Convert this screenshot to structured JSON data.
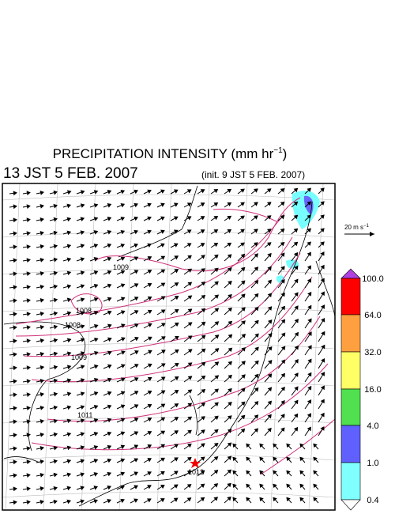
{
  "header": {
    "title": "PRECIPITATION INTENSITY (mm hr",
    "title_sup": "−1",
    "title_end": ")",
    "valid_time": "13 JST 5 FEB. 2007",
    "init_time": "(init. 9 JST 5 FEB. 2007)"
  },
  "vector_legend": {
    "label": "20 m s",
    "label_sup": "−1"
  },
  "colorbar": {
    "labels": [
      "100.0",
      "64.0",
      "32.0",
      "16.0",
      "4.0",
      "1.0",
      "0.4"
    ]
  },
  "contour_labels": [
    "1009",
    "1008",
    "1008",
    "1009",
    "1011",
    "1012"
  ]
}
